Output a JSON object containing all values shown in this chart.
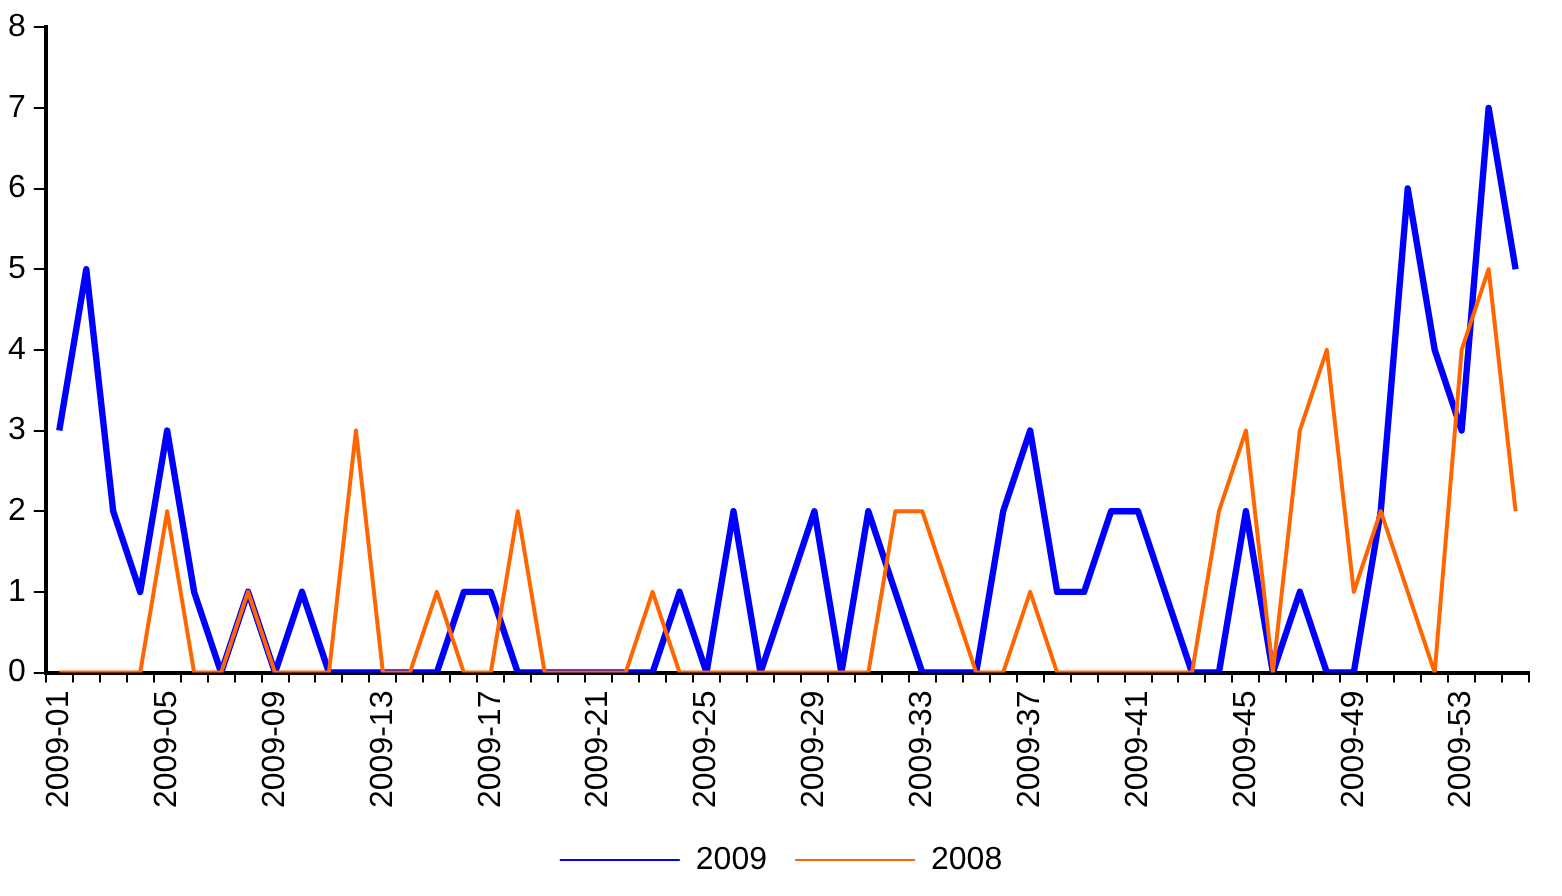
{
  "chart_data": {
    "type": "line",
    "categories": [
      "2009-01",
      null,
      null,
      null,
      "2009-05",
      null,
      null,
      null,
      "2009-09",
      null,
      null,
      null,
      "2009-13",
      null,
      null,
      null,
      "2009-17",
      null,
      null,
      null,
      "2009-21",
      null,
      null,
      null,
      "2009-25",
      null,
      null,
      null,
      "2009-29",
      null,
      null,
      null,
      "2009-33",
      null,
      null,
      null,
      "2009-37",
      null,
      null,
      null,
      "2009-41",
      null,
      null,
      null,
      "2009-45",
      null,
      null,
      null,
      "2009-49",
      null,
      null,
      null,
      "2009-53",
      null,
      null
    ],
    "series": [
      {
        "name": "2009",
        "color": "#0000ff",
        "values": [
          3,
          5,
          2,
          1,
          3,
          1,
          0,
          1,
          0,
          1,
          0,
          0,
          0,
          0,
          0,
          1,
          1,
          0,
          0,
          0,
          0,
          0,
          0,
          1,
          0,
          2,
          0,
          1,
          2,
          0,
          2,
          1,
          0,
          0,
          0,
          2,
          3,
          1,
          1,
          2,
          2,
          1,
          0,
          0,
          2,
          0,
          1,
          0,
          0,
          2,
          6,
          4,
          3,
          7,
          5
        ]
      },
      {
        "name": "2008",
        "color": "#ff6600",
        "values": [
          0,
          0,
          0,
          0,
          2,
          0,
          0,
          1,
          0,
          0,
          0,
          3,
          0,
          0,
          1,
          0,
          0,
          2,
          0,
          0,
          0,
          0,
          1,
          0,
          0,
          0,
          0,
          0,
          0,
          0,
          0,
          2,
          2,
          1,
          0,
          0,
          1,
          0,
          0,
          0,
          0,
          0,
          0,
          2,
          3,
          0,
          3,
          4,
          1,
          2,
          1,
          0,
          4,
          5,
          2
        ]
      }
    ],
    "ylim": [
      0,
      8
    ],
    "yticks": [
      0,
      1,
      2,
      3,
      4,
      5,
      6,
      7,
      8
    ],
    "grid": false,
    "legend": "bottom",
    "marker": "none",
    "line_style": "solid"
  }
}
